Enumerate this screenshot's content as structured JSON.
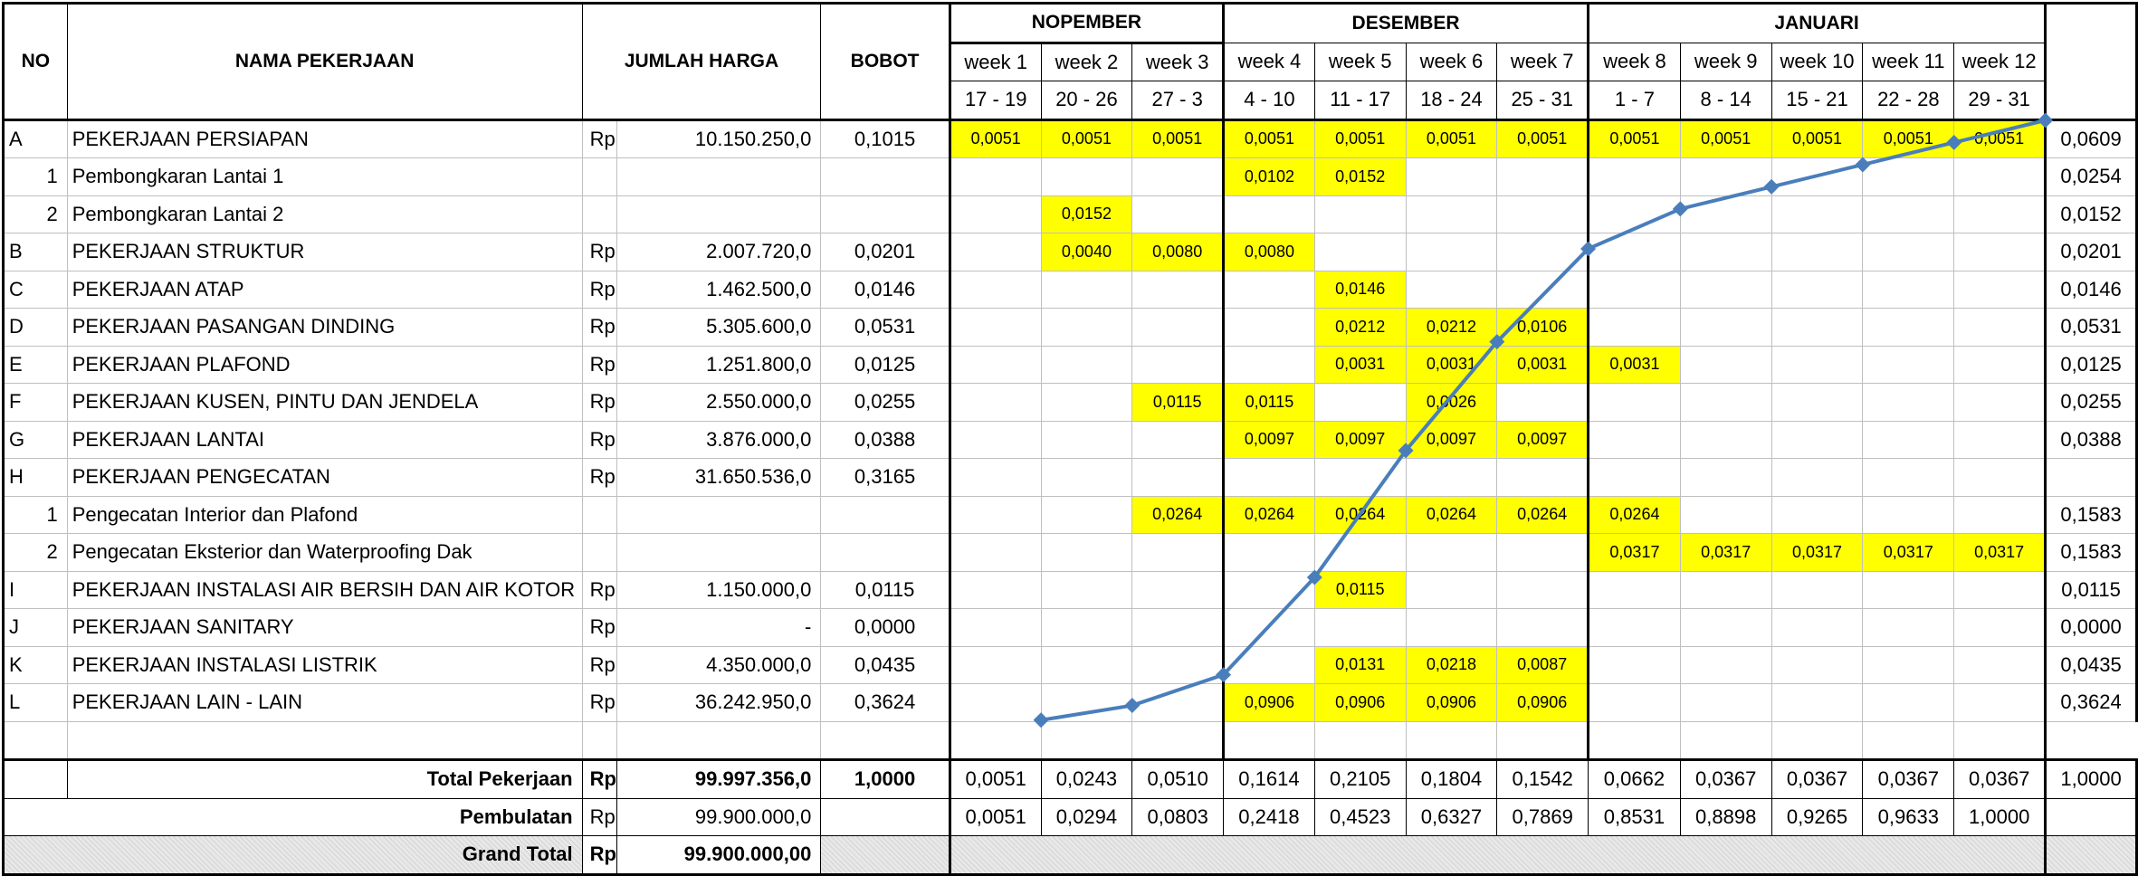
{
  "header": {
    "no": "NO",
    "nama": "NAMA PEKERJAAN",
    "jumlah": "JUMLAH HARGA",
    "bobot": "BOBOT"
  },
  "months": [
    {
      "name": "NOPEMBER",
      "span": 3
    },
    {
      "name": "DESEMBER",
      "span": 4
    },
    {
      "name": "JANUARI",
      "span": 5
    }
  ],
  "weeks": [
    "week 1",
    "week 2",
    "week 3",
    "week 4",
    "week 5",
    "week 6",
    "week 7",
    "week 8",
    "week 9",
    "week 10",
    "week 11",
    "week 12"
  ],
  "dates": [
    "17 - 19",
    "20 - 26",
    "27 - 3",
    "4 - 10",
    "11 - 17",
    "18 - 24",
    "25 - 31",
    "1 - 7",
    "8 - 14",
    "15 - 21",
    "22 - 28",
    "29 - 31"
  ],
  "rows": [
    {
      "no": "A",
      "noAlign": "l",
      "name": "PEKERJAAN PERSIAPAN",
      "rp": "Rp",
      "harga": "10.150.250,0",
      "bobot": "0,1015",
      "cells": {
        "0": "0,0051",
        "1": "0,0051",
        "2": "0,0051",
        "3": "0,0051",
        "4": "0,0051",
        "5": "0,0051",
        "6": "0,0051",
        "7": "0,0051",
        "8": "0,0051",
        "9": "0,0051",
        "10": "0,0051",
        "11": "0,0051"
      },
      "total": "0,0609"
    },
    {
      "no": "1",
      "noAlign": "r",
      "name": "Pembongkaran Lantai 1",
      "rp": "",
      "harga": "",
      "bobot": "",
      "cells": {
        "3": "0,0102",
        "4": "0,0152"
      },
      "total": "0,0254"
    },
    {
      "no": "2",
      "noAlign": "r",
      "name": "Pembongkaran Lantai 2",
      "rp": "",
      "harga": "",
      "bobot": "",
      "cells": {
        "1": "0,0152"
      },
      "total": "0,0152"
    },
    {
      "no": "B",
      "noAlign": "l",
      "name": "PEKERJAAN STRUKTUR",
      "rp": "Rp",
      "harga": "2.007.720,0",
      "bobot": "0,0201",
      "cells": {
        "1": "0,0040",
        "2": "0,0080",
        "3": "0,0080"
      },
      "total": "0,0201"
    },
    {
      "no": "C",
      "noAlign": "l",
      "name": "PEKERJAAN ATAP",
      "rp": "Rp",
      "harga": "1.462.500,0",
      "bobot": "0,0146",
      "cells": {
        "4": "0,0146"
      },
      "total": "0,0146"
    },
    {
      "no": "D",
      "noAlign": "l",
      "name": "PEKERJAAN PASANGAN DINDING",
      "rp": "Rp",
      "harga": "5.305.600,0",
      "bobot": "0,0531",
      "cells": {
        "4": "0,0212",
        "5": "0,0212",
        "6": "0,0106"
      },
      "total": "0,0531"
    },
    {
      "no": "E",
      "noAlign": "l",
      "name": "PEKERJAAN PLAFOND",
      "rp": "Rp",
      "harga": "1.251.800,0",
      "bobot": "0,0125",
      "cells": {
        "4": "0,0031",
        "5": "0,0031",
        "6": "0,0031",
        "7": "0,0031"
      },
      "total": "0,0125"
    },
    {
      "no": "F",
      "noAlign": "l",
      "name": "PEKERJAAN KUSEN, PINTU DAN JENDELA",
      "rp": "Rp",
      "harga": "2.550.000,0",
      "bobot": "0,0255",
      "cells": {
        "2": "0,0115",
        "3": "0,0115",
        "5": "0,0026"
      },
      "total": "0,0255"
    },
    {
      "no": "G",
      "noAlign": "l",
      "name": "PEKERJAAN LANTAI",
      "rp": "Rp",
      "harga": "3.876.000,0",
      "bobot": "0,0388",
      "cells": {
        "3": "0,0097",
        "4": "0,0097",
        "5": "0,0097",
        "6": "0,0097"
      },
      "total": "0,0388"
    },
    {
      "no": "H",
      "noAlign": "l",
      "name": "PEKERJAAN PENGECATAN",
      "rp": "Rp",
      "harga": "31.650.536,0",
      "bobot": "0,3165",
      "cells": {},
      "total": ""
    },
    {
      "no": "1",
      "noAlign": "r",
      "name": "Pengecatan Interior dan Plafond",
      "rp": "",
      "harga": "",
      "bobot": "",
      "cells": {
        "2": "0,0264",
        "3": "0,0264",
        "4": "0,0264",
        "5": "0,0264",
        "6": "0,0264",
        "7": "0,0264"
      },
      "total": "0,1583"
    },
    {
      "no": "2",
      "noAlign": "r",
      "name": "Pengecatan Eksterior dan Waterproofing Dak",
      "rp": "",
      "harga": "",
      "bobot": "",
      "cells": {
        "7": "0,0317",
        "8": "0,0317",
        "9": "0,0317",
        "10": "0,0317",
        "11": "0,0317"
      },
      "total": "0,1583"
    },
    {
      "no": "I",
      "noAlign": "l",
      "name": "PEKERJAAN INSTALASI AIR BERSIH DAN AIR KOTOR",
      "rp": "Rp",
      "harga": "1.150.000,0",
      "bobot": "0,0115",
      "cells": {
        "4": "0,0115"
      },
      "total": "0,0115"
    },
    {
      "no": "J",
      "noAlign": "l",
      "name": "PEKERJAAN SANITARY",
      "rp": "Rp",
      "harga": "-",
      "bobot": "0,0000",
      "cells": {},
      "total": "0,0000"
    },
    {
      "no": "K",
      "noAlign": "l",
      "name": "PEKERJAAN INSTALASI LISTRIK",
      "rp": "Rp",
      "harga": "4.350.000,0",
      "bobot": "0,0435",
      "cells": {
        "4": "0,0131",
        "5": "0,0218",
        "6": "0,0087"
      },
      "total": "0,0435"
    },
    {
      "no": "L",
      "noAlign": "l",
      "name": "PEKERJAAN LAIN - LAIN",
      "rp": "Rp",
      "harga": "36.242.950,0",
      "bobot": "0,3624",
      "cells": {
        "3": "0,0906",
        "4": "0,0906",
        "5": "0,0906",
        "6": "0,0906"
      },
      "total": "0,3624"
    }
  ],
  "totalPekerjaan": {
    "label": "Total Pekerjaan",
    "rp": "Rp",
    "harga": "99.997.356,0",
    "bobot": "1,0000",
    "weekly": [
      "0,0051",
      "0,0243",
      "0,0510",
      "0,1614",
      "0,2105",
      "0,1804",
      "0,1542",
      "0,0662",
      "0,0367",
      "0,0367",
      "0,0367",
      "0,0367"
    ],
    "total": "1,0000"
  },
  "pembulatan": {
    "label": "Pembulatan",
    "rp": "Rp",
    "harga": "99.900.000,0",
    "cumulative": [
      "0,0051",
      "0,0294",
      "0,0803",
      "0,2418",
      "0,4523",
      "0,6327",
      "0,7869",
      "0,8531",
      "0,8898",
      "0,9265",
      "0,9633",
      "1,0000"
    ]
  },
  "grandTotal": {
    "label": "Grand Total",
    "rp": "Rp",
    "harga": "99.900.000,00"
  },
  "chart_data": {
    "type": "line",
    "x": [
      "week 1",
      "week 2",
      "week 3",
      "week 4",
      "week 5",
      "week 6",
      "week 7",
      "week 8",
      "week 9",
      "week 10",
      "week 11",
      "week 12"
    ],
    "values": [
      0.0051,
      0.0294,
      0.0803,
      0.2418,
      0.4523,
      0.6327,
      0.7869,
      0.8531,
      0.8898,
      0.9265,
      0.9633,
      1.0
    ],
    "ylim": [
      0,
      1
    ],
    "color": "#4a7ebb"
  }
}
